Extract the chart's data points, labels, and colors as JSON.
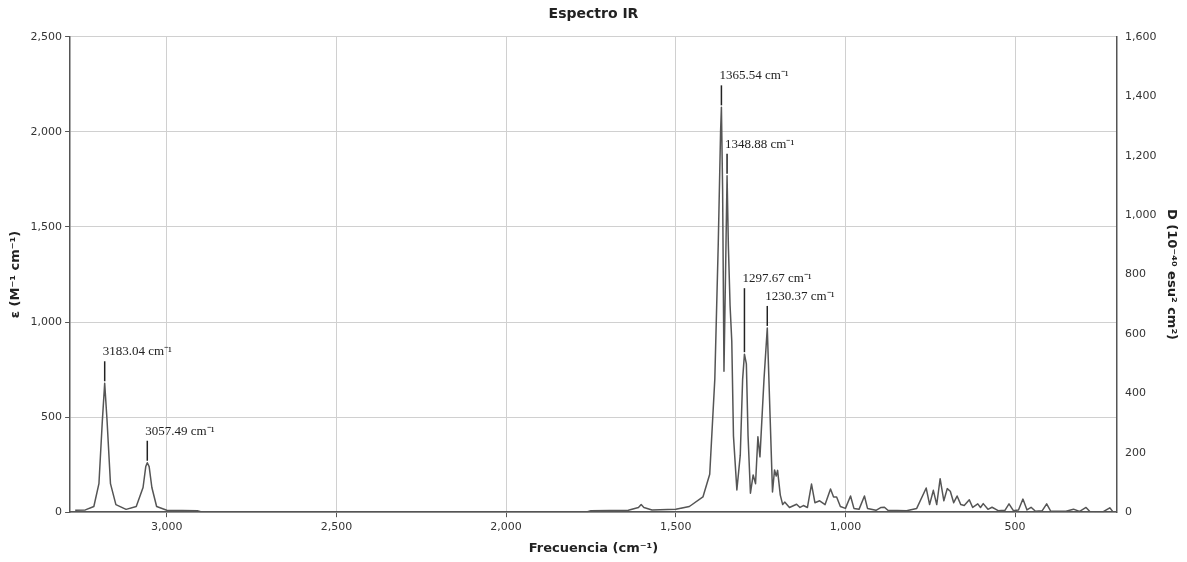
{
  "chart_data": {
    "type": "line",
    "title": "Espectro IR",
    "xlabel": "Frecuencia (cm⁻¹)",
    "ylabel": "ε (M⁻¹ cm⁻¹)",
    "y2label": "D (10⁻⁴⁰ esu² cm²)",
    "color": "#555555",
    "x": [
      3270,
      3240,
      3215,
      3200,
      3190,
      3183.04,
      3176,
      3166,
      3150,
      3120,
      3090,
      3070,
      3062,
      3057.49,
      3052,
      3044,
      3030,
      3000,
      2910,
      2900,
      1760,
      1750,
      1640,
      1610,
      1602,
      1594,
      1570,
      1500,
      1460,
      1420,
      1400,
      1385,
      1375,
      1368,
      1365.54,
      1362,
      1358,
      1353,
      1348.88,
      1345,
      1340,
      1335,
      1330,
      1320,
      1310,
      1303,
      1297.67,
      1292,
      1287,
      1280,
      1272,
      1265,
      1258,
      1252,
      1240,
      1230.37,
      1222,
      1215,
      1209,
      1204,
      1200,
      1192,
      1185,
      1179,
      1165,
      1144,
      1134,
      1124,
      1112,
      1100,
      1090,
      1076,
      1060,
      1044,
      1035,
      1026,
      1015,
      1000,
      985,
      975,
      960,
      944,
      935,
      910,
      895,
      885,
      875,
      820,
      790,
      762,
      752,
      741,
      731,
      721,
      710,
      700,
      691,
      681,
      671,
      660,
      650,
      635,
      625,
      610,
      602,
      594,
      580,
      568,
      550,
      530,
      518,
      505,
      490,
      477,
      465,
      453,
      440,
      420,
      407,
      395,
      350,
      328,
      310,
      291,
      280,
      240,
      221,
      212
    ],
    "values": [
      10,
      12,
      30,
      150,
      480,
      678,
      480,
      150,
      40,
      15,
      30,
      130,
      240,
      260,
      240,
      130,
      30,
      10,
      8,
      2,
      2,
      8,
      10,
      25,
      40,
      25,
      12,
      15,
      30,
      80,
      200,
      700,
      1400,
      2000,
      2129,
      1700,
      741,
      1300,
      1769,
      1400,
      1086,
      900,
      400,
      117,
      300,
      700,
      831,
      780,
      400,
      100,
      196,
      150,
      397,
      291,
      700,
      969,
      500,
      106,
      222,
      190,
      220,
      90,
      40,
      53,
      25,
      42,
      25,
      35,
      25,
      148,
      50,
      60,
      40,
      122,
      80,
      80,
      30,
      20,
      85,
      20,
      15,
      85,
      20,
      10,
      25,
      26,
      10,
      8,
      20,
      127,
      40,
      115,
      40,
      176,
      60,
      124,
      110,
      50,
      85,
      40,
      35,
      65,
      25,
      44,
      25,
      45,
      15,
      26,
      8,
      10,
      44,
      8,
      12,
      69,
      12,
      26,
      5,
      8,
      44,
      5,
      5,
      16,
      4,
      25,
      4,
      3,
      23,
      3
    ],
    "xlim": [
      3285,
      200
    ],
    "xticks": [
      {
        "value": 3000,
        "label": "3,000"
      },
      {
        "value": 2500,
        "label": "2,500"
      },
      {
        "value": 2000,
        "label": "2,000"
      },
      {
        "value": 1500,
        "label": "1,500"
      },
      {
        "value": 1000,
        "label": "1,000"
      },
      500
    ],
    "ylim": [
      0,
      2500
    ],
    "yticks": [
      0,
      500,
      {
        "value": 1000,
        "label": "1,000"
      },
      {
        "value": 1500,
        "label": "1,500"
      },
      {
        "value": 2000,
        "label": "2,000"
      },
      {
        "value": 2500,
        "label": "2,500"
      }
    ],
    "y2lim": [
      0,
      1600
    ],
    "y2ticks": [
      0,
      200,
      400,
      600,
      800,
      {
        "value": 1000,
        "label": "1,000"
      },
      {
        "value": 1200,
        "label": "1,200"
      },
      {
        "value": 1400,
        "label": "1,400"
      },
      {
        "value": 1600,
        "label": "1,600"
      }
    ],
    "grid": true,
    "annotations": [
      {
        "text": "3183.04 cm⁻¹",
        "x": 3183.04,
        "y": 678
      },
      {
        "text": "3057.49 cm⁻¹",
        "x": 3057.49,
        "y": 260
      },
      {
        "text": "1365.54 cm⁻¹",
        "x": 1365.54,
        "y": 2129
      },
      {
        "text": "1348.88 cm⁻¹",
        "x": 1348.88,
        "y": 1769
      },
      {
        "text": "1297.67 cm⁻¹",
        "x": 1297.67,
        "y": 831
      },
      {
        "text": "1230.37 cm⁻¹",
        "x": 1230.37,
        "y": 969
      }
    ]
  }
}
